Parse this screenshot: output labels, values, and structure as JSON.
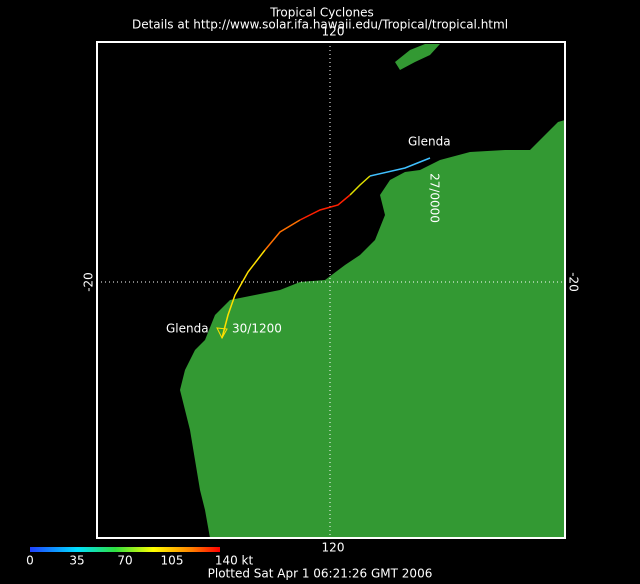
{
  "header": {
    "title": "Tropical Cyclones",
    "subtitle": "Details at http://www.solar.ifa.hawaii.edu/Tropical/tropical.html"
  },
  "map": {
    "longitude_label_top": "120",
    "longitude_label_bottom": "120",
    "latitude_label_left": "-20",
    "latitude_label_right": "-20",
    "storm": {
      "start_name": "Glenda",
      "start_time": "27/0000",
      "end_name": "Glenda",
      "end_time": "30/1200"
    }
  },
  "legend": {
    "labels": [
      "0",
      "35",
      "70",
      "105",
      "140 kt"
    ]
  },
  "footer": {
    "text": "Plotted Sat Apr 1 06:21:26 GMT 2006"
  }
}
